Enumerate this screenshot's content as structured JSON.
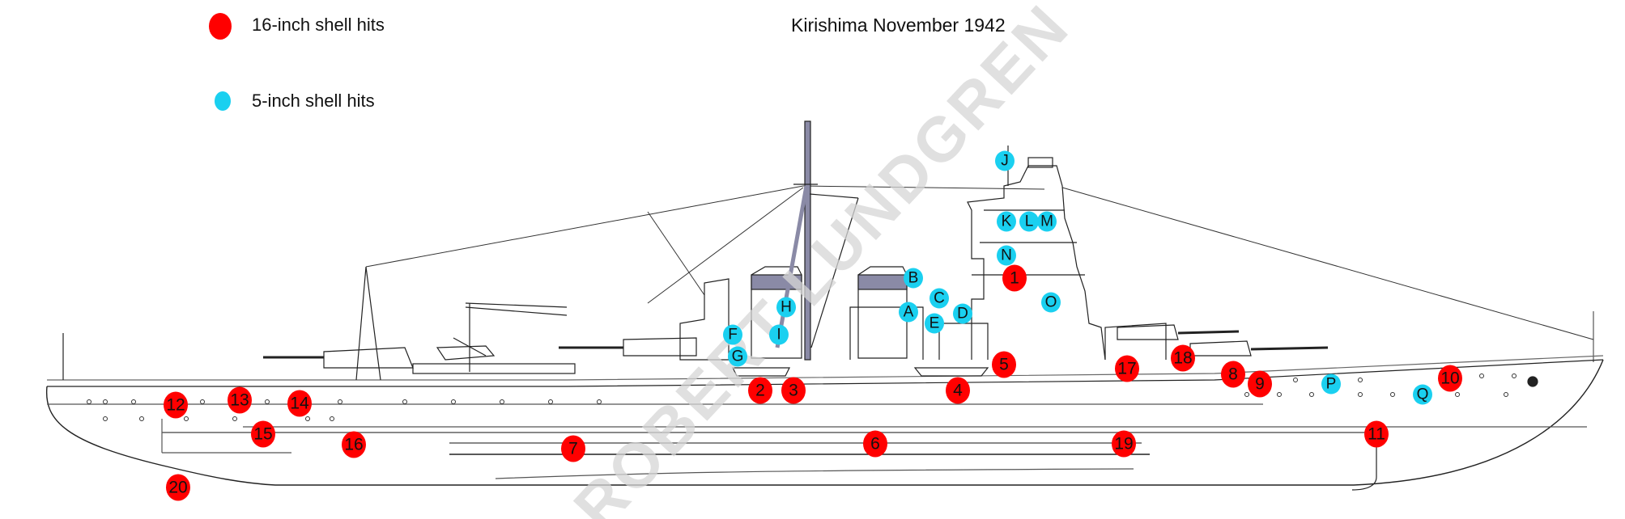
{
  "title": "Kirishima November 1942",
  "watermark": "ROBERT LUNDGREN",
  "colors": {
    "heavy_hit": "#ff0000",
    "light_hit": "#1ad0f0",
    "funnel_cap": "#8a8aa6"
  },
  "legend": [
    {
      "label": "16-inch shell hits",
      "color": "#ff0000"
    },
    {
      "label": "5-inch shell hits",
      "color": "#1ad0f0"
    }
  ],
  "hits_16_inch": [
    "1",
    "2",
    "3",
    "4",
    "5",
    "6",
    "7",
    "8",
    "9",
    "10",
    "11",
    "12",
    "13",
    "14",
    "15",
    "16",
    "17",
    "18",
    "19",
    "20"
  ],
  "hits_5_inch": [
    "A",
    "B",
    "C",
    "D",
    "E",
    "F",
    "G",
    "H",
    "I",
    "J",
    "K",
    "L",
    "M",
    "N",
    "O",
    "P",
    "Q"
  ]
}
